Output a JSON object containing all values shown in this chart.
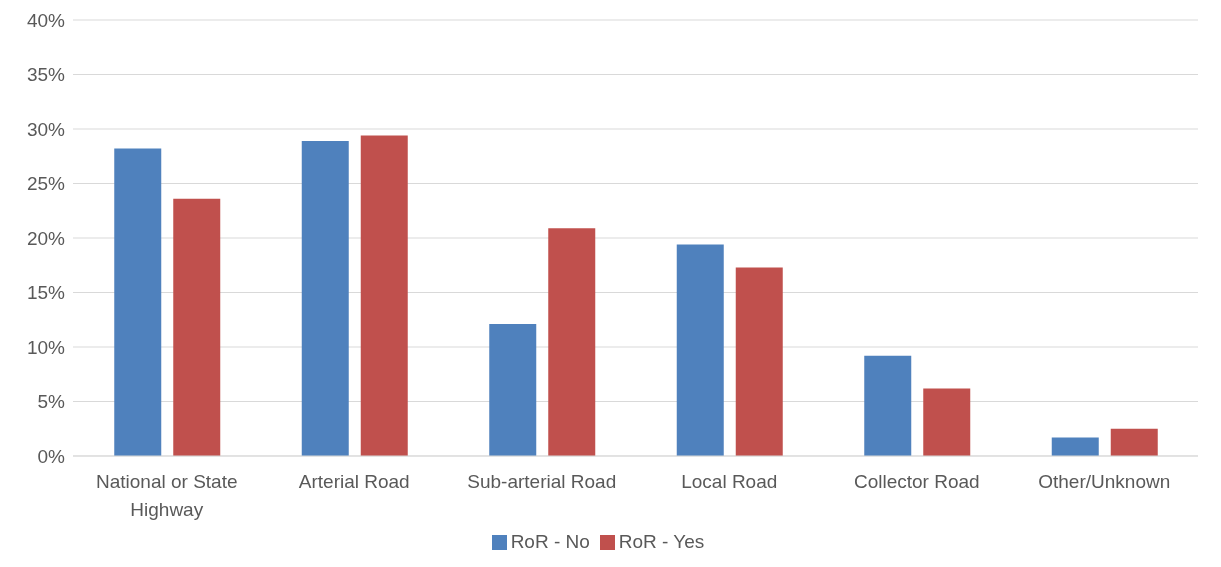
{
  "chart_data": {
    "type": "bar",
    "categories": [
      "National or State Highway",
      "Arterial Road",
      "Sub-arterial Road",
      "Local Road",
      "Collector Road",
      "Other/Unknown"
    ],
    "series": [
      {
        "name": "RoR - No",
        "color": "#4f81bd",
        "values": [
          28.2,
          28.9,
          12.1,
          19.4,
          9.2,
          1.7
        ]
      },
      {
        "name": "RoR - Yes",
        "color": "#c0504d",
        "values": [
          23.6,
          29.4,
          20.9,
          17.3,
          6.2,
          2.5
        ]
      }
    ],
    "ylim": [
      0,
      40
    ],
    "yticks": [
      {
        "value": 0,
        "label": "0%"
      },
      {
        "value": 5,
        "label": "5%"
      },
      {
        "value": 10,
        "label": "10%"
      },
      {
        "value": 15,
        "label": "15%"
      },
      {
        "value": 20,
        "label": "20%"
      },
      {
        "value": 25,
        "label": "25%"
      },
      {
        "value": 30,
        "label": "30%"
      },
      {
        "value": 35,
        "label": "35%"
      },
      {
        "value": 40,
        "label": "40%"
      }
    ],
    "grid": "y",
    "legend": "bottom"
  }
}
